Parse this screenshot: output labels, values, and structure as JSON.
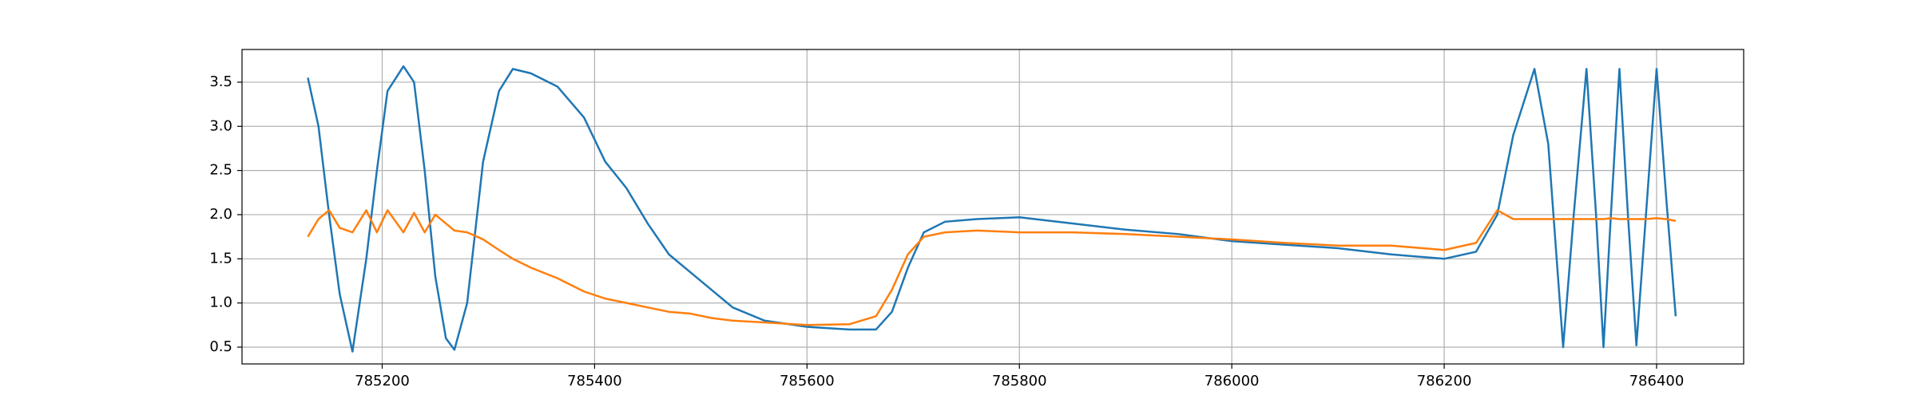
{
  "chart_data": {
    "type": "line",
    "x": [
      785130,
      785140,
      785150,
      785160,
      785172,
      785185,
      785195,
      785205,
      785220,
      785230,
      785240,
      785250,
      785260,
      785268,
      785280,
      785295,
      785310,
      785323,
      785340,
      785365,
      785390,
      785410,
      785430,
      785450,
      785470,
      785490,
      785510,
      785530,
      785560,
      785600,
      785640,
      785665,
      785680,
      785695,
      785710,
      785730,
      785760,
      785800,
      785850,
      785900,
      785950,
      786000,
      786050,
      786100,
      786150,
      786200,
      786230,
      786250,
      786265,
      786285,
      786298,
      786312,
      786322,
      786334,
      786343,
      786350,
      786357,
      786365,
      786373,
      786381,
      786390,
      786400,
      786409,
      786418
    ],
    "series": [
      {
        "color": "#1f77b4",
        "values": [
          3.55,
          3.0,
          2.0,
          1.1,
          0.45,
          1.5,
          2.5,
          3.4,
          3.68,
          3.5,
          2.5,
          1.3,
          0.6,
          0.47,
          1.0,
          2.6,
          3.4,
          3.65,
          3.6,
          3.45,
          3.1,
          2.6,
          2.3,
          1.9,
          1.55,
          1.35,
          1.15,
          0.95,
          0.8,
          0.73,
          0.7,
          0.7,
          0.9,
          1.4,
          1.8,
          1.92,
          1.95,
          1.97,
          1.9,
          1.83,
          1.78,
          1.7,
          1.66,
          1.62,
          1.55,
          1.5,
          1.58,
          2.0,
          2.9,
          3.65,
          2.8,
          0.5,
          2.0,
          3.65,
          2.0,
          0.5,
          2.0,
          3.65,
          2.0,
          0.52,
          2.0,
          3.65,
          2.2,
          0.85
        ]
      },
      {
        "color": "#ff7f0e",
        "values": [
          1.75,
          1.95,
          2.05,
          1.85,
          1.8,
          2.05,
          1.8,
          2.05,
          1.8,
          2.02,
          1.8,
          2.0,
          1.9,
          1.82,
          1.8,
          1.72,
          1.6,
          1.5,
          1.4,
          1.28,
          1.13,
          1.05,
          1.0,
          0.95,
          0.9,
          0.88,
          0.83,
          0.8,
          0.78,
          0.75,
          0.76,
          0.85,
          1.15,
          1.55,
          1.75,
          1.8,
          1.82,
          1.8,
          1.8,
          1.78,
          1.75,
          1.72,
          1.68,
          1.65,
          1.65,
          1.6,
          1.68,
          2.05,
          1.95,
          1.95,
          1.95,
          1.95,
          1.95,
          1.95,
          1.95,
          1.95,
          1.96,
          1.95,
          1.95,
          1.95,
          1.95,
          1.96,
          1.95,
          1.93
        ]
      }
    ],
    "xlim": [
      785068,
      786482
    ],
    "xticks": [
      785200,
      785400,
      785600,
      785800,
      786000,
      786200,
      786400
    ],
    "ylim": [
      0.31,
      3.87
    ],
    "yticks": [
      0.5,
      {
        "value": 1.0,
        "label": "1.0"
      },
      1.5,
      {
        "value": 2.0,
        "label": "2.0"
      },
      2.5,
      {
        "value": 3.0,
        "label": "3.0"
      },
      3.5
    ],
    "grid": true
  }
}
